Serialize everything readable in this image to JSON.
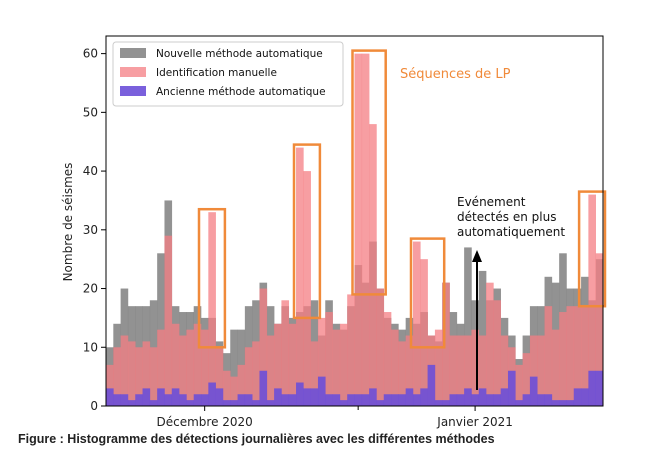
{
  "chart_data": {
    "type": "bar",
    "ylabel": "Nombre de séismes",
    "ylim": [
      0,
      63
    ],
    "yticks": [
      0,
      10,
      20,
      30,
      40,
      50,
      60
    ],
    "xticklabels": [
      "Décembre 2020",
      "Janvier 2021"
    ],
    "legend_position": "upper-left",
    "series": [
      {
        "name": "Nouvelle méthode automatique",
        "color": "#7f7f7f",
        "values": [
          10,
          14,
          20,
          17,
          17,
          17,
          18,
          26,
          35,
          17,
          16,
          16,
          17,
          15,
          15,
          11,
          9,
          13,
          13,
          17,
          18,
          21,
          17,
          14,
          17,
          15,
          16,
          17,
          18,
          12,
          18,
          14,
          13,
          17,
          24,
          21,
          28,
          20,
          15,
          14,
          13,
          15,
          14,
          16,
          12,
          11,
          21,
          16,
          14,
          27,
          18,
          23,
          18,
          20,
          15,
          12,
          8,
          12,
          17,
          17,
          22,
          21,
          26,
          20,
          20,
          22,
          18,
          25
        ]
      },
      {
        "name": "Identification manuelle",
        "color": "#f47d83",
        "values": [
          7,
          10,
          12,
          11,
          10,
          11,
          10,
          13,
          29,
          14,
          12,
          13,
          14,
          13,
          33,
          10,
          6,
          5,
          7,
          10,
          11,
          20,
          12,
          14,
          18,
          14,
          44,
          40,
          11,
          15,
          16,
          13,
          14,
          19,
          60,
          60,
          48,
          20,
          16,
          13,
          11,
          12,
          28,
          25,
          12,
          13,
          21,
          12,
          12,
          12,
          13,
          12,
          21,
          18,
          12,
          10,
          7,
          9,
          12,
          12,
          17,
          13,
          16,
          17,
          17,
          17,
          36,
          26
        ]
      },
      {
        "name": "Ancienne méthode automatique",
        "color": "#6b4fd8",
        "values": [
          3,
          2,
          2,
          1,
          2,
          3,
          1,
          3,
          2,
          3,
          2,
          1,
          2,
          2,
          4,
          3,
          1,
          1,
          2,
          2,
          1,
          6,
          1,
          3,
          2,
          2,
          4,
          3,
          3,
          5,
          2,
          2,
          1,
          2,
          2,
          2,
          3,
          1,
          2,
          2,
          2,
          3,
          2,
          3,
          7,
          1,
          1,
          2,
          2,
          3,
          2,
          3,
          2,
          2,
          3,
          6,
          1,
          2,
          5,
          2,
          2,
          1,
          1,
          1,
          3,
          3,
          6,
          6
        ]
      }
    ],
    "annotations": [
      {
        "text": "Séquences de LP",
        "color": "#f08a3a"
      },
      {
        "text_lines": [
          "Evénement",
          "détectés en plus",
          "automatiquement"
        ]
      }
    ]
  },
  "caption": "Figure : Histogramme des détections journalières avec les différentes méthodes"
}
